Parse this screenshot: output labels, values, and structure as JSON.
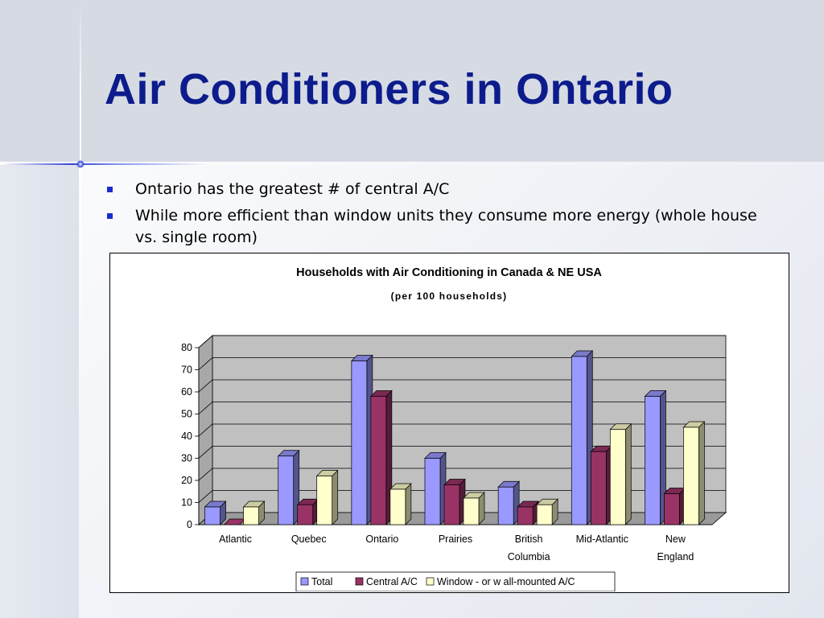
{
  "slide": {
    "title": "Air Conditioners in Ontario",
    "bullets": [
      "Ontario has the greatest # of central A/C",
      "While more efficient than window units they consume more energy (whole house vs. single room)"
    ]
  },
  "chart_data": {
    "type": "bar",
    "title": "Households with Air Conditioning in Canada & NE USA",
    "subtitle": "(per 100 households)",
    "categories": [
      "Atlantic",
      "Quebec",
      "Ontario",
      "Prairies",
      "British Columbia",
      "Mid-Atlantic",
      "New England"
    ],
    "series": [
      {
        "name": "Total",
        "color": "#9999ff",
        "values": [
          8,
          31,
          74,
          30,
          17,
          76,
          58
        ]
      },
      {
        "name": "Central A/C",
        "color": "#993366",
        "values": [
          0,
          9,
          58,
          18,
          8,
          33,
          14
        ]
      },
      {
        "name": "Window - or w all-mounted A/C",
        "color": "#ffffcc",
        "values": [
          8,
          22,
          16,
          12,
          9,
          43,
          44
        ]
      }
    ],
    "xlabel": "",
    "ylabel": "",
    "ylim": [
      0,
      80
    ],
    "yticks": [
      0,
      10,
      20,
      30,
      40,
      50,
      60,
      70,
      80
    ],
    "grid": true,
    "legend_position": "bottom",
    "wall_color": "#c0c0c0"
  }
}
